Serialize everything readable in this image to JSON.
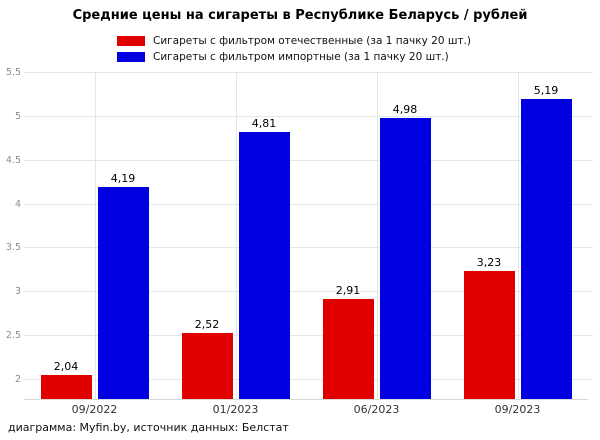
{
  "chart_data": {
    "type": "bar",
    "title": "Средние цены на сигареты в Республике Беларусь / рублей",
    "categories": [
      "09/2022",
      "01/2023",
      "06/2023",
      "09/2023"
    ],
    "series": [
      {
        "name": "Сигареты с фильтром отечественные (за 1 пачку 20 шт.)",
        "color": "#e00000",
        "values": [
          2.04,
          2.52,
          2.91,
          3.23
        ],
        "value_labels": [
          "2,04",
          "2,52",
          "2,91",
          "3,23"
        ]
      },
      {
        "name": "Сигареты с фильтром импортные (за 1 пачку 20 шт.)",
        "color": "#0000e0",
        "values": [
          4.19,
          4.81,
          4.98,
          5.19
        ],
        "value_labels": [
          "4,19",
          "4,81",
          "4,98",
          "5,19"
        ]
      }
    ],
    "y_axis": {
      "min": 1.77,
      "max": 5.5,
      "tick_values": [
        2,
        2.5,
        3,
        3.5,
        4,
        4.5,
        5,
        5.5
      ],
      "tick_labels": [
        "2",
        "2.5",
        "3",
        "3.5",
        "4",
        "4.5",
        "5",
        "5.5"
      ]
    },
    "grid": true,
    "legend_position": "top"
  },
  "footer": {
    "credit": "диаграмма: Myfin.by, источник данных: Белстат"
  }
}
